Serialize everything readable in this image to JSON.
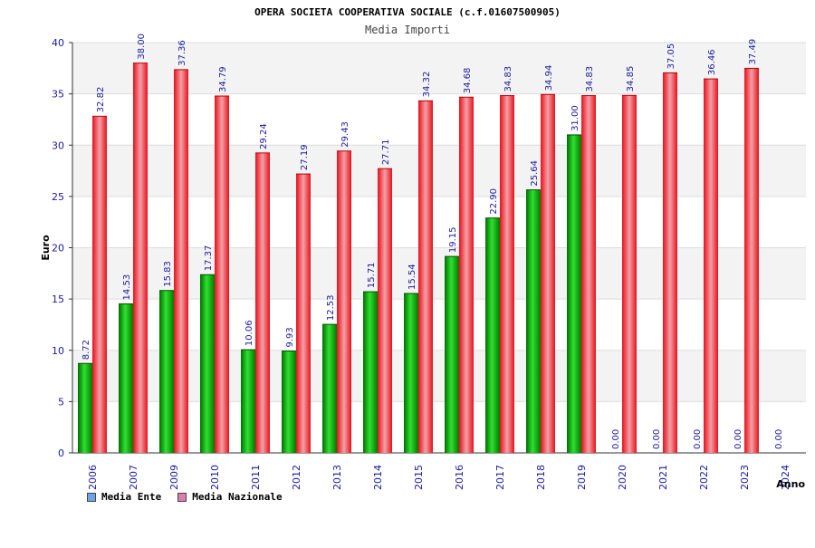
{
  "title": "OPERA SOCIETA COOPERATIVA SOCIALE (c.f.01607500905)",
  "subtitle": "Media Importi",
  "chart_data": {
    "type": "bar",
    "title": "OPERA SOCIETA COOPERATIVA SOCIALE (c.f.01607500905)",
    "subtitle": "Media Importi",
    "xlabel": "Anno",
    "ylabel": "Euro",
    "ylim": [
      0,
      40
    ],
    "yticks": [
      0,
      5,
      10,
      15,
      20,
      25,
      30,
      35,
      40
    ],
    "grid": true,
    "legend_position": "bottom-left",
    "categories": [
      "2006",
      "2007",
      "2009",
      "2010",
      "2011",
      "2012",
      "2013",
      "2014",
      "2015",
      "2016",
      "2017",
      "2018",
      "2019",
      "2020",
      "2021",
      "2022",
      "2023",
      "2024"
    ],
    "series": [
      {
        "name": "Media Ente",
        "color": "#00aa00",
        "values": [
          8.72,
          14.53,
          15.83,
          17.37,
          10.06,
          9.93,
          12.53,
          15.71,
          15.54,
          19.15,
          22.9,
          25.64,
          31.0,
          0.0,
          0.0,
          0.0,
          0.0,
          0.0
        ],
        "labels": [
          "8.72",
          "14.53",
          "15.83",
          "17.37",
          "10.06",
          "9.93",
          "12.53",
          "15.71",
          "15.54",
          "19.15",
          "22.90",
          "25.64",
          "31.00",
          "0.00",
          "0.00",
          "0.00",
          "0.00",
          "0.00"
        ]
      },
      {
        "name": "Media Nazionale",
        "color": "#e8202a",
        "values": [
          32.82,
          38.0,
          37.36,
          34.79,
          29.24,
          27.19,
          29.43,
          27.71,
          34.32,
          34.68,
          34.83,
          34.94,
          34.83,
          34.85,
          37.05,
          36.46,
          37.49,
          null
        ],
        "labels": [
          "32.82",
          "38.00",
          "37.36",
          "34.79",
          "29.24",
          "27.19",
          "29.43",
          "27.71",
          "34.32",
          "34.68",
          "34.83",
          "34.94",
          "34.83",
          "34.85",
          "37.05",
          "36.46",
          "37.49",
          ""
        ]
      }
    ]
  },
  "legend": {
    "items": [
      {
        "label": "Media Ente",
        "color": "#6aa5e8"
      },
      {
        "label": "Media Nazionale",
        "color": "#e07bb0"
      }
    ]
  }
}
